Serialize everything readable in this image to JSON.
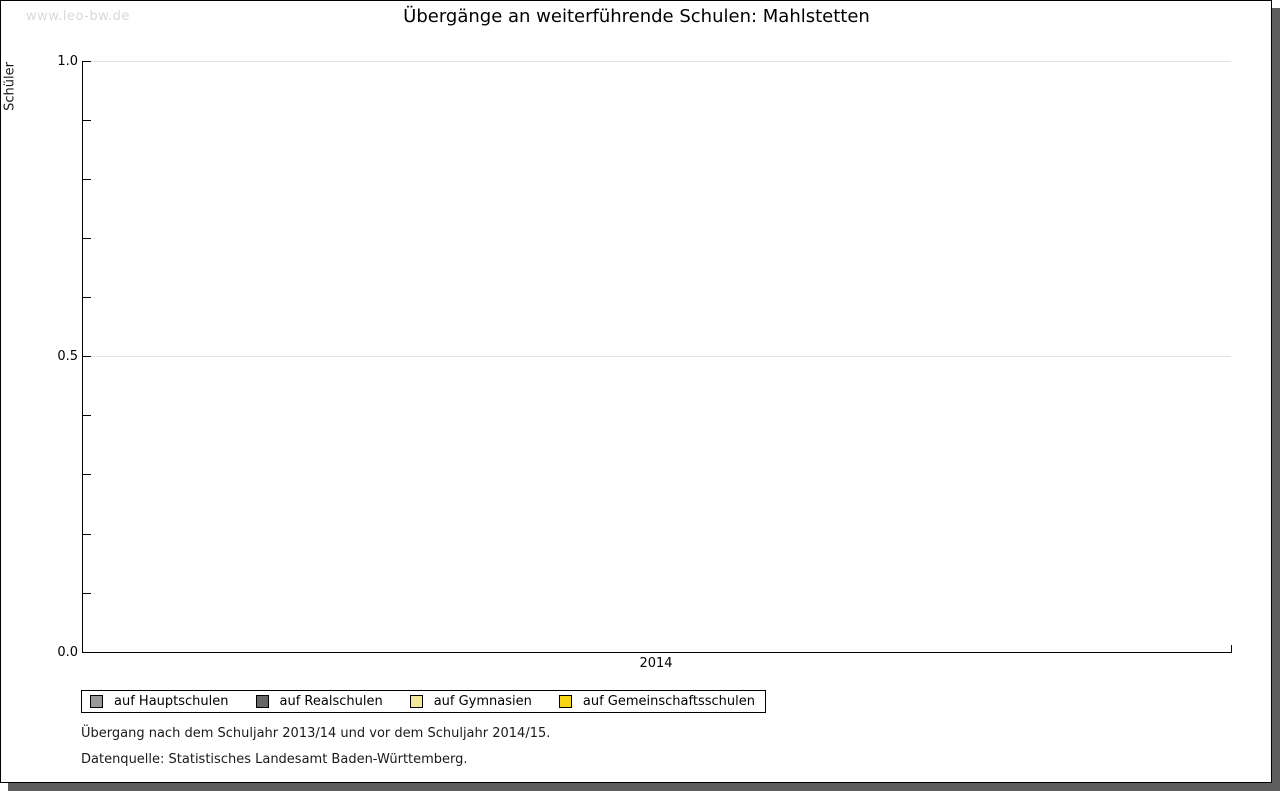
{
  "watermark": "www.leo-bw.de",
  "title": "Übergänge an weiterführende Schulen: Mahlstetten",
  "chart": {
    "ylabel": "Schüler",
    "yticks": {
      "top": "1.0",
      "mid": "0.5",
      "bottom": "0.0"
    },
    "xtick": "2014"
  },
  "legend": {
    "items": [
      {
        "label": "auf Hauptschulen",
        "color": "#999999"
      },
      {
        "label": "auf Realschulen",
        "color": "#666666"
      },
      {
        "label": "auf Gymnasien",
        "color": "#f5e79b"
      },
      {
        "label": "auf Gemeinschaftsschulen",
        "color": "#f8d616"
      }
    ]
  },
  "footer": {
    "line1": "Übergang nach dem Schuljahr 2013/14 und vor dem Schuljahr 2014/15.",
    "line2": "Datenquelle: Statistisches Landesamt Baden-Württemberg."
  },
  "chart_data": {
    "type": "bar",
    "categories": [
      "2014"
    ],
    "series": [
      {
        "name": "auf Hauptschulen",
        "values": [
          0
        ],
        "color": "#999999"
      },
      {
        "name": "auf Realschulen",
        "values": [
          0
        ],
        "color": "#666666"
      },
      {
        "name": "auf Gymnasien",
        "values": [
          0
        ],
        "color": "#f5e79b"
      },
      {
        "name": "auf Gemeinschaftsschulen",
        "values": [
          0
        ],
        "color": "#f8d616"
      }
    ],
    "title": "Übergänge an weiterführende Schulen: Mahlstetten",
    "xlabel": "",
    "ylabel": "Schüler",
    "ylim": [
      0,
      1
    ],
    "ytick_labels": [
      0.0,
      0.5,
      1.0
    ],
    "minor_tick_step": 0.1,
    "grid": "horizontal gridlines at 0.5 and 1.0",
    "legend_position": "bottom",
    "bars_rendered": false
  }
}
